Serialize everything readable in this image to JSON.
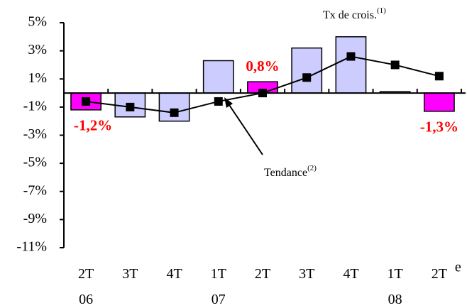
{
  "chart_data": {
    "type": "bar",
    "categories": [
      "2T\n06",
      "3T",
      "4T",
      "1T\n07",
      "2T",
      "3T",
      "4T",
      "1T\n08",
      "2T"
    ],
    "last_category_note": "e",
    "series": [
      {
        "name": "Tx de crois.",
        "note": "(1)",
        "type": "bar",
        "colors": [
          "#ff00ff",
          "#ccccff",
          "#ccccff",
          "#ccccff",
          "#ff00ff",
          "#ccccff",
          "#ccccff",
          "#ccccff",
          "#ff00ff"
        ],
        "values": [
          -1.2,
          -1.7,
          -2.0,
          2.3,
          0.8,
          3.2,
          4.0,
          0.1,
          -1.3
        ],
        "value_labels": [
          "-1,2%",
          null,
          null,
          null,
          "0,8%",
          null,
          null,
          null,
          "-1,3%"
        ]
      },
      {
        "name": "Tendance",
        "note": "(2)",
        "type": "line",
        "color": "#000000",
        "values": [
          -0.6,
          -1.0,
          -1.4,
          -0.6,
          0.0,
          1.1,
          2.6,
          2.0,
          1.2
        ]
      }
    ],
    "ylim": [
      -11,
      5
    ],
    "yticks": [
      {
        "value": -11,
        "label": "-11%"
      },
      {
        "value": -9,
        "label": "-9%"
      },
      {
        "value": -7,
        "label": "-7%"
      },
      {
        "value": -5,
        "label": "-5%"
      },
      {
        "value": -3,
        "label": "-3%"
      },
      {
        "value": -1,
        "label": "-1%"
      },
      {
        "value": 1,
        "label": "1%"
      },
      {
        "value": 3,
        "label": "3%"
      },
      {
        "value": 5,
        "label": "5%"
      }
    ]
  }
}
